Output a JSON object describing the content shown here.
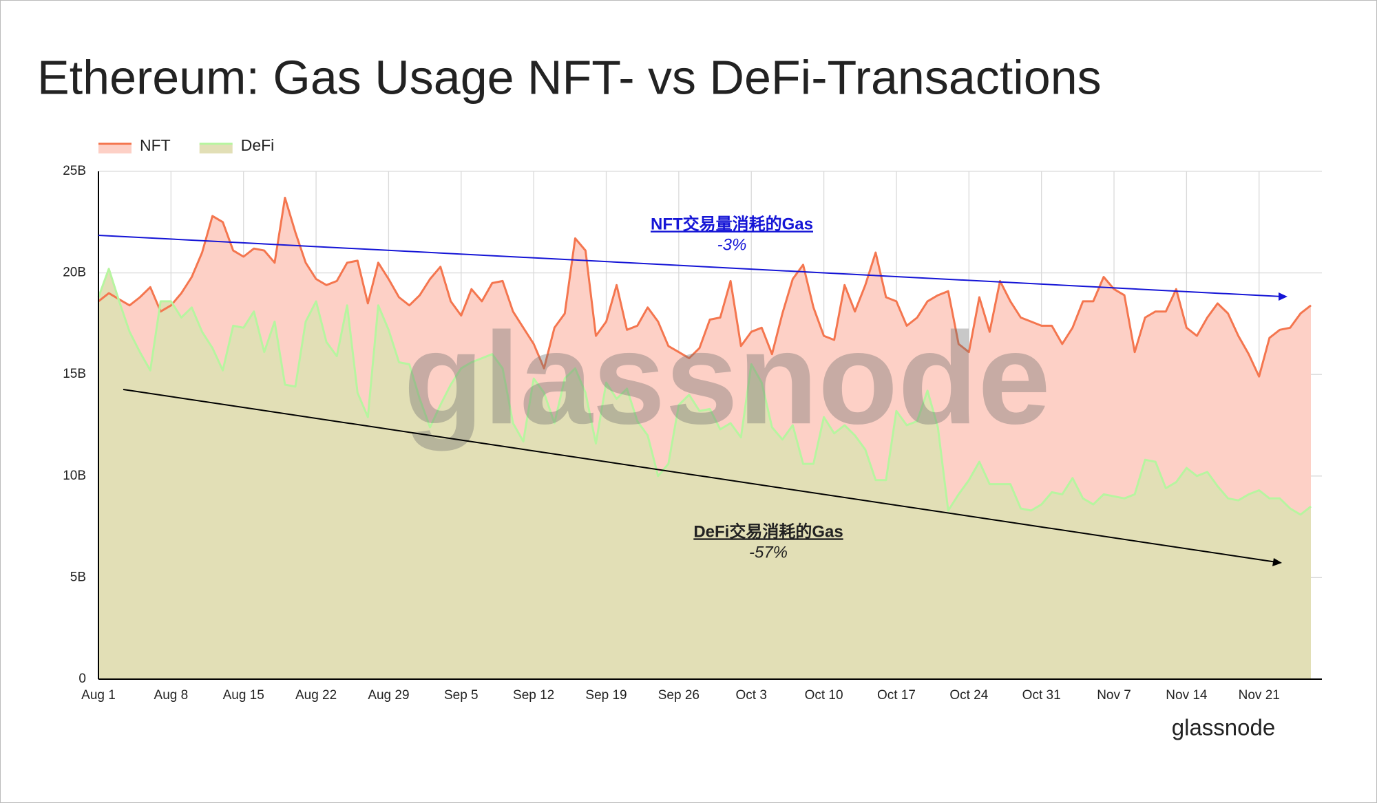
{
  "chart_data": {
    "type": "area",
    "title": "Ethereum: Gas Usage NFT- vs DeFi-Transactions",
    "categories": [
      "Aug 1",
      null,
      null,
      null,
      null,
      null,
      null,
      "Aug 8",
      null,
      null,
      null,
      null,
      null,
      null,
      "Aug 15",
      null,
      null,
      null,
      null,
      null,
      null,
      "Aug 22",
      null,
      null,
      null,
      null,
      null,
      null,
      "Aug 29",
      null,
      null,
      null,
      null,
      null,
      null,
      "Sep 5",
      null,
      null,
      null,
      null,
      null,
      null,
      "Sep 12",
      null,
      null,
      null,
      null,
      null,
      null,
      "Sep 19",
      null,
      null,
      null,
      null,
      null,
      null,
      "Sep 26",
      null,
      null,
      null,
      null,
      null,
      null,
      "Oct 3",
      null,
      null,
      null,
      null,
      null,
      null,
      "Oct 10",
      null,
      null,
      null,
      null,
      null,
      null,
      "Oct 17",
      null,
      null,
      null,
      null,
      null,
      null,
      "Oct 24",
      null,
      null,
      null,
      null,
      null,
      null,
      "Oct 31",
      null,
      null,
      null,
      null,
      null,
      null,
      "Nov 7",
      null,
      null,
      null,
      null,
      null,
      null,
      "Nov 14",
      null,
      null,
      null,
      null,
      null,
      null,
      "Nov 21",
      null,
      null,
      null,
      null,
      null
    ],
    "series": [
      {
        "name": "NFT",
        "color": "#f4764f",
        "fill": "#fdd0c6",
        "values": [
          18600000000.0,
          19000000000.0,
          18700000000.0,
          18400000000.0,
          18800000000.0,
          19300000000.0,
          18100000000.0,
          18400000000.0,
          19000000000.0,
          19800000000.0,
          21000000000.0,
          22800000000.0,
          22500000000.0,
          21100000000.0,
          20800000000.0,
          21200000000.0,
          21100000000.0,
          20500000000.0,
          23700000000.0,
          22000000000.0,
          20500000000.0,
          19700000000.0,
          19400000000.0,
          19600000000.0,
          20500000000.0,
          20600000000.0,
          18500000000.0,
          20500000000.0,
          19700000000.0,
          18800000000.0,
          18400000000.0,
          18900000000.0,
          19700000000.0,
          20300000000.0,
          18600000000.0,
          17900000000.0,
          19200000000.0,
          18600000000.0,
          19500000000.0,
          19600000000.0,
          18100000000.0,
          17300000000.0,
          16500000000.0,
          15300000000.0,
          17300000000.0,
          18000000000.0,
          21700000000.0,
          21100000000.0,
          16900000000.0,
          17600000000.0,
          19400000000.0,
          17200000000.0,
          17400000000.0,
          18300000000.0,
          17600000000.0,
          16400000000.0,
          16100000000.0,
          15800000000.0,
          16300000000.0,
          17700000000.0,
          17800000000.0,
          19600000000.0,
          16400000000.0,
          17100000000.0,
          17300000000.0,
          16000000000.0,
          18000000000.0,
          19700000000.0,
          20400000000.0,
          18300000000.0,
          16900000000.0,
          16700000000.0,
          19400000000.0,
          18100000000.0,
          19400000000.0,
          21000000000.0,
          18800000000.0,
          18600000000.0,
          17400000000.0,
          17800000000.0,
          18600000000.0,
          18900000000.0,
          19100000000.0,
          16500000000.0,
          16100000000.0,
          18800000000.0,
          17100000000.0,
          19600000000.0,
          18600000000.0,
          17800000000.0,
          17600000000.0,
          17400000000.0,
          17400000000.0,
          16500000000.0,
          17300000000.0,
          18600000000.0,
          18600000000.0,
          19800000000.0,
          19200000000.0,
          18900000000.0,
          16100000000.0,
          17800000000.0,
          18100000000.0,
          18100000000.0,
          19200000000.0,
          17300000000.0,
          16900000000.0,
          17800000000.0,
          18500000000.0,
          18000000000.0,
          16900000000.0,
          16000000000.0,
          14900000000.0,
          16800000000.0,
          17200000000.0,
          17300000000.0,
          18000000000.0,
          18400000000.0
        ]
      },
      {
        "name": "DeFi",
        "color": "#b7f5a0",
        "fill": "#e2dfb6",
        "values": [
          18800000000.0,
          20200000000.0,
          18600000000.0,
          17100000000.0,
          16100000000.0,
          15200000000.0,
          18600000000.0,
          18600000000.0,
          17800000000.0,
          18300000000.0,
          17100000000.0,
          16300000000.0,
          15200000000.0,
          17400000000.0,
          17300000000.0,
          18100000000.0,
          16100000000.0,
          17600000000.0,
          14500000000.0,
          14400000000.0,
          17600000000.0,
          18600000000.0,
          16600000000.0,
          15900000000.0,
          18400000000.0,
          14100000000.0,
          12900000000.0,
          18400000000.0,
          17200000000.0,
          15600000000.0,
          15500000000.0,
          13800000000.0,
          12400000000.0,
          13500000000.0,
          14500000000.0,
          15300000000.0,
          15600000000.0,
          15800000000.0,
          16000000000.0,
          15300000000.0,
          12600000000.0,
          11700000000.0,
          14800000000.0,
          14100000000.0,
          12600000000.0,
          14800000000.0,
          15300000000.0,
          14100000000.0,
          11600000000.0,
          14600000000.0,
          13800000000.0,
          14300000000.0,
          12700000000.0,
          12000000000.0,
          10000000000.0,
          10600000000.0,
          13500000000.0,
          14000000000.0,
          13200000000.0,
          13300000000.0,
          12300000000.0,
          12600000000.0,
          11900000000.0,
          15500000000.0,
          14600000000.0,
          12400000000.0,
          11800000000.0,
          12500000000.0,
          10600000000.0,
          10600000000.0,
          12900000000.0,
          12100000000.0,
          12500000000.0,
          12000000000.0,
          11300000000.0,
          9800000000.0,
          9800000000.0,
          13200000000.0,
          12500000000.0,
          12700000000.0,
          14200000000.0,
          12400000000.0,
          8300000000.0,
          9100000000.0,
          9800000000.0,
          10700000000.0,
          9600000000.0,
          9600000000.0,
          9600000000.0,
          8400000000.0,
          8300000000.0,
          8600000000.0,
          9200000000.0,
          9100000000.0,
          9900000000.0,
          8900000000.0,
          8600000000.0,
          9100000000.0,
          9000000000.0,
          8900000000.0,
          9100000000.0,
          10800000000.0,
          10700000000.0,
          9400000000.0,
          9700000000.0,
          10400000000.0,
          10000000000.0,
          10200000000.0,
          9500000000.0,
          8900000000.0,
          8800000000.0,
          9100000000.0,
          9300000000.0,
          8900000000.0,
          8900000000.0,
          8400000000.0,
          8100000000.0,
          8500000000.0
        ]
      }
    ],
    "ylim": [
      0,
      25000000000.0
    ],
    "yticks": [
      0,
      {
        "value": 5000000000.0,
        "label": "5B"
      },
      {
        "value": 10000000000.0,
        "label": "10B"
      },
      {
        "value": 15000000000.0,
        "label": "15B"
      },
      {
        "value": 20000000000.0,
        "label": "20B"
      },
      {
        "value": 25000000000.0,
        "label": "25B"
      }
    ],
    "grid": true,
    "legend": "top-left",
    "annotations": [
      {
        "text": "NFT交易量消耗的Gas",
        "change": "-3%"
      },
      {
        "text": "DeFi交易消耗的Gas",
        "change": "-57%"
      }
    ],
    "watermark": "glassnode",
    "logo": "glassnode"
  }
}
